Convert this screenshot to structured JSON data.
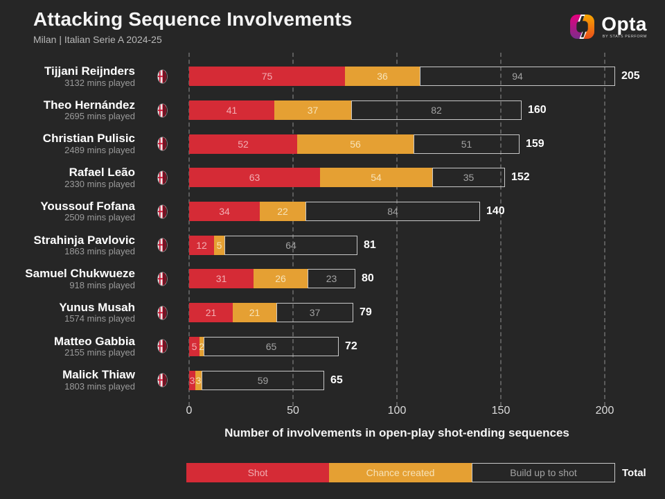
{
  "header": {
    "title": "Attacking Sequence Involvements",
    "subtitle": "Milan | Italian Serie A 2024-25"
  },
  "brand": {
    "name": "Opta",
    "byline": "by STATS PERFORM"
  },
  "chart_data": {
    "type": "bar",
    "orientation": "horizontal",
    "stacked": true,
    "title": "Attacking Sequence Involvements",
    "subtitle": "Milan | Italian Serie A 2024-25",
    "xlabel": "Number of involvements in open-play shot-ending sequences",
    "xlim": [
      0,
      200
    ],
    "xticks": [
      0,
      50,
      100,
      150,
      200
    ],
    "grid": "dashed-vertical",
    "legend_position": "bottom",
    "colors": {
      "shot": "#D52B36",
      "chance_created": "#E5A033",
      "build_up_fill": "transparent",
      "build_up_border": "#c9c9c9",
      "background": "#262626"
    },
    "legend": [
      {
        "label": "Shot"
      },
      {
        "label": "Chance created"
      },
      {
        "label": "Build up to shot"
      }
    ],
    "total_label": "Total",
    "players": [
      {
        "name": "Tijjani Reijnders",
        "mins": "3132 mins played",
        "shot": 75,
        "chance_created": 36,
        "build_up": 94,
        "total": 205
      },
      {
        "name": "Theo Hernández",
        "mins": "2695 mins played",
        "shot": 41,
        "chance_created": 37,
        "build_up": 82,
        "total": 160
      },
      {
        "name": "Christian Pulisic",
        "mins": "2489 mins played",
        "shot": 52,
        "chance_created": 56,
        "build_up": 51,
        "total": 159
      },
      {
        "name": "Rafael Leão",
        "mins": "2330 mins played",
        "shot": 63,
        "chance_created": 54,
        "build_up": 35,
        "total": 152
      },
      {
        "name": "Youssouf Fofana",
        "mins": "2509 mins played",
        "shot": 34,
        "chance_created": 22,
        "build_up": 84,
        "total": 140
      },
      {
        "name": "Strahinja Pavlovic",
        "mins": "1863 mins played",
        "shot": 12,
        "chance_created": 5,
        "build_up": 64,
        "total": 81
      },
      {
        "name": "Samuel Chukwueze",
        "mins": "918 mins played",
        "shot": 31,
        "chance_created": 26,
        "build_up": 23,
        "total": 80
      },
      {
        "name": "Yunus Musah",
        "mins": "1574 mins played",
        "shot": 21,
        "chance_created": 21,
        "build_up": 37,
        "total": 79
      },
      {
        "name": "Matteo Gabbia",
        "mins": "2155 mins played",
        "shot": 5,
        "chance_created": 2,
        "build_up": 65,
        "total": 72
      },
      {
        "name": "Malick Thiaw",
        "mins": "1803 mins played",
        "shot": 3,
        "chance_created": 3,
        "build_up": 59,
        "total": 65
      }
    ]
  }
}
